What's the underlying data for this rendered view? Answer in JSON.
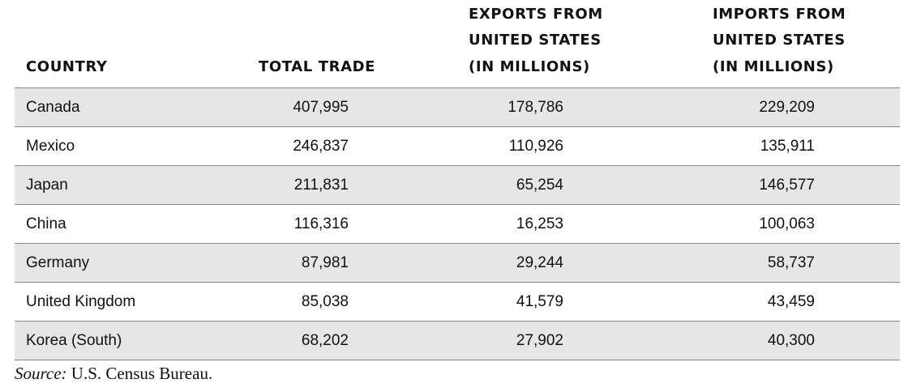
{
  "table": {
    "headers": {
      "country": [
        "COUNTRY"
      ],
      "total": [
        "TOTAL TRADE"
      ],
      "exports": [
        "EXPORTS FROM",
        "UNITED STATES",
        "(IN MILLIONS)"
      ],
      "imports": [
        "IMPORTS FROM",
        "UNITED STATES",
        "(IN MILLIONS)"
      ]
    },
    "rows": [
      {
        "country": "Canada",
        "total": "407,995",
        "exports": "178,786",
        "imports": "229,209"
      },
      {
        "country": "Mexico",
        "total": "246,837",
        "exports": "110,926",
        "imports": "135,911"
      },
      {
        "country": "Japan",
        "total": "211,831",
        "exports": "65,254",
        "imports": "146,577"
      },
      {
        "country": "China",
        "total": "116,316",
        "exports": "16,253",
        "imports": "100,063"
      },
      {
        "country": "Germany",
        "total": "87,981",
        "exports": "29,244",
        "imports": "58,737"
      },
      {
        "country": "United Kingdom",
        "total": "85,038",
        "exports": "41,579",
        "imports": "43,459"
      },
      {
        "country": "Korea (South)",
        "total": "68,202",
        "exports": "27,902",
        "imports": "40,300"
      }
    ],
    "shaded_color": "#e6e6e6"
  },
  "source": {
    "label": "Source:",
    "text": "U.S. Census Bureau."
  }
}
